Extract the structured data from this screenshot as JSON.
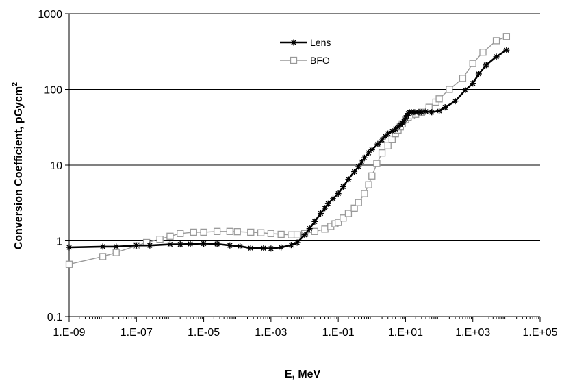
{
  "chart_data": {
    "type": "line",
    "title": "",
    "xlabel": "E, MeV",
    "ylabel": "Conversion Coefficient, pGycm²",
    "ylabel_main": "Conversion Coefficient, pGycm",
    "ylabel_sup": "2",
    "x_scale": "log",
    "y_scale": "log",
    "xlim": [
      1e-09,
      100000.0
    ],
    "ylim": [
      0.1,
      1000
    ],
    "x_ticks": [
      1e-09,
      1e-07,
      1e-05,
      0.001,
      0.1,
      10.0,
      1000.0,
      100000.0
    ],
    "x_tick_labels": [
      "1.E-09",
      "1.E-07",
      "1.E-05",
      "1.E-03",
      "1.E-01",
      "1.E+01",
      "1.E+03",
      "1.E+05"
    ],
    "y_ticks": [
      0.1,
      1,
      10,
      100,
      1000
    ],
    "y_tick_labels": [
      "0.1",
      "1",
      "10",
      "100",
      "1000"
    ],
    "grid": "horizontal major gridlines",
    "legend_position": "top-center",
    "series": [
      {
        "name": "Lens",
        "color": "#000000",
        "marker": "asterisk",
        "points": [
          [
            1e-09,
            0.82
          ],
          [
            1e-08,
            0.84
          ],
          [
            2.5e-08,
            0.84
          ],
          [
            1e-07,
            0.87
          ],
          [
            2.5e-07,
            0.87
          ],
          [
            1e-06,
            0.9
          ],
          [
            2e-06,
            0.9
          ],
          [
            4e-06,
            0.91
          ],
          [
            1e-05,
            0.92
          ],
          [
            2.5e-05,
            0.91
          ],
          [
            6e-05,
            0.87
          ],
          [
            0.00012,
            0.85
          ],
          [
            0.00025,
            0.8
          ],
          [
            0.0006,
            0.8
          ],
          [
            0.001,
            0.79
          ],
          [
            0.002,
            0.82
          ],
          [
            0.004,
            0.88
          ],
          [
            0.006,
            0.95
          ],
          [
            0.01,
            1.2
          ],
          [
            0.014,
            1.45
          ],
          [
            0.02,
            1.8
          ],
          [
            0.03,
            2.3
          ],
          [
            0.04,
            2.7
          ],
          [
            0.05,
            3.1
          ],
          [
            0.07,
            3.6
          ],
          [
            0.1,
            4.2
          ],
          [
            0.14,
            5.2
          ],
          [
            0.2,
            6.5
          ],
          [
            0.3,
            8.2
          ],
          [
            0.4,
            9.6
          ],
          [
            0.5,
            11
          ],
          [
            0.6,
            12.5
          ],
          [
            0.8,
            14.5
          ],
          [
            1,
            16
          ],
          [
            1.5,
            19
          ],
          [
            2,
            21.5
          ],
          [
            2.5,
            24
          ],
          [
            3,
            26
          ],
          [
            4,
            28
          ],
          [
            5,
            30
          ],
          [
            6,
            32
          ],
          [
            7,
            34
          ],
          [
            8,
            36
          ],
          [
            9,
            38
          ],
          [
            10,
            42
          ],
          [
            11,
            45
          ],
          [
            12,
            48
          ],
          [
            13,
            50
          ],
          [
            15,
            50
          ],
          [
            18,
            50
          ],
          [
            20,
            50
          ],
          [
            25,
            50
          ],
          [
            30,
            50
          ],
          [
            40,
            51
          ],
          [
            60,
            50
          ],
          [
            100,
            52
          ],
          [
            150,
            58
          ],
          [
            300,
            70
          ],
          [
            600,
            98
          ],
          [
            1000,
            120
          ],
          [
            1500,
            160
          ],
          [
            2500,
            210
          ],
          [
            5000,
            270
          ],
          [
            10000,
            330
          ]
        ]
      },
      {
        "name": "BFO",
        "color": "#999999",
        "marker": "square",
        "points": [
          [
            1e-09,
            0.49
          ],
          [
            1e-08,
            0.62
          ],
          [
            2.5e-08,
            0.7
          ],
          [
            1e-07,
            0.86
          ],
          [
            2e-07,
            0.95
          ],
          [
            5e-07,
            1.05
          ],
          [
            1e-06,
            1.15
          ],
          [
            2e-06,
            1.25
          ],
          [
            5e-06,
            1.3
          ],
          [
            1e-05,
            1.3
          ],
          [
            2.5e-05,
            1.33
          ],
          [
            6e-05,
            1.33
          ],
          [
            0.0001,
            1.32
          ],
          [
            0.00025,
            1.3
          ],
          [
            0.0005,
            1.28
          ],
          [
            0.001,
            1.25
          ],
          [
            0.002,
            1.22
          ],
          [
            0.004,
            1.2
          ],
          [
            0.006,
            1.2
          ],
          [
            0.01,
            1.25
          ],
          [
            0.02,
            1.33
          ],
          [
            0.04,
            1.43
          ],
          [
            0.06,
            1.55
          ],
          [
            0.08,
            1.68
          ],
          [
            0.1,
            1.75
          ],
          [
            0.14,
            2
          ],
          [
            0.2,
            2.3
          ],
          [
            0.3,
            2.7
          ],
          [
            0.4,
            3.2
          ],
          [
            0.6,
            4.2
          ],
          [
            0.8,
            5.5
          ],
          [
            1,
            7.2
          ],
          [
            1.4,
            10.5
          ],
          [
            2,
            14.5
          ],
          [
            3,
            18
          ],
          [
            4,
            22
          ],
          [
            5,
            26
          ],
          [
            6,
            29
          ],
          [
            7,
            32
          ],
          [
            8,
            35
          ],
          [
            10,
            40
          ],
          [
            12,
            43
          ],
          [
            15,
            45
          ],
          [
            20,
            47
          ],
          [
            30,
            50
          ],
          [
            50,
            58
          ],
          [
            80,
            68
          ],
          [
            100,
            75
          ],
          [
            200,
            100
          ],
          [
            500,
            140
          ],
          [
            1000,
            220
          ],
          [
            2000,
            310
          ],
          [
            5000,
            440
          ],
          [
            10000,
            500
          ]
        ]
      }
    ]
  }
}
